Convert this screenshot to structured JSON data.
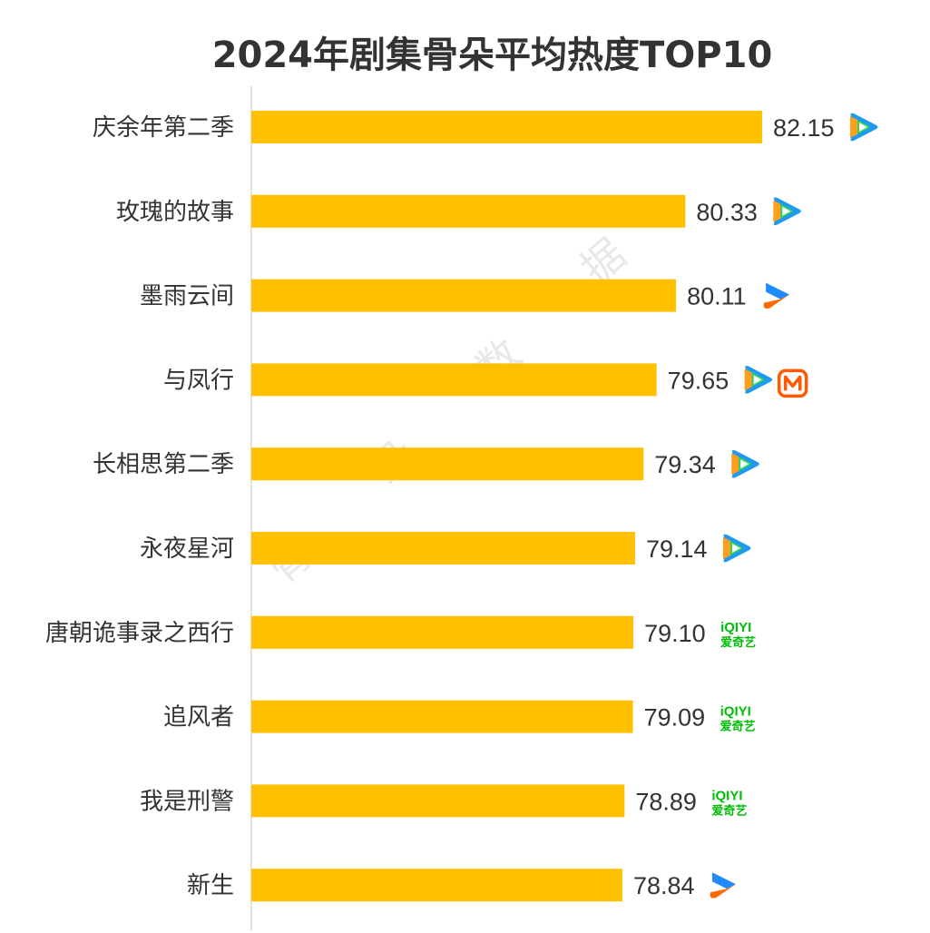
{
  "chart_data": {
    "type": "bar",
    "orientation": "horizontal",
    "title": "2024年剧集骨朵平均热度TOP10",
    "categories": [
      "庆余年第二季",
      "玫瑰的故事",
      "墨雨云间",
      "与凤行",
      "长相思第二季",
      "永夜星河",
      "唐朝诡事录之西行",
      "追风者",
      "我是刑警",
      "新生"
    ],
    "values": [
      82.15,
      80.33,
      80.11,
      79.65,
      79.34,
      79.14,
      79.1,
      79.09,
      78.89,
      78.84
    ],
    "value_labels": [
      "82.15",
      "80.33",
      "80.11",
      "79.65",
      "79.34",
      "79.14",
      "79.10",
      "79.09",
      "78.89",
      "78.84"
    ],
    "platforms": [
      [
        "tencent-video-icon"
      ],
      [
        "tencent-video-icon"
      ],
      [
        "youku-icon"
      ],
      [
        "tencent-video-icon",
        "mango-tv-icon"
      ],
      [
        "tencent-video-icon"
      ],
      [
        "tencent-video-icon"
      ],
      [
        "iqiyi-icon"
      ],
      [
        "iqiyi-icon"
      ],
      [
        "iqiyi-icon"
      ],
      [
        "youku-icon"
      ]
    ],
    "bar_color": "#FFC000",
    "grid": false,
    "legend": "none"
  },
  "iqiyi_logo": {
    "top": "iQIYI",
    "bottom": "爱奇艺"
  },
  "watermark": [
    "骨",
    "朵",
    "数",
    "据"
  ],
  "colors": {
    "bar": "#FFC000",
    "text": "#333333",
    "axis": "#d9d9d9",
    "tencent_blue": "#1e9bf0",
    "tencent_green": "#2fd35a",
    "tencent_orange": "#ff9e1b",
    "youku_blue": "#1f8bff",
    "youku_orange": "#ff6a00",
    "mango_orange": "#ff5a00",
    "iqiyi_green": "#00be06"
  }
}
